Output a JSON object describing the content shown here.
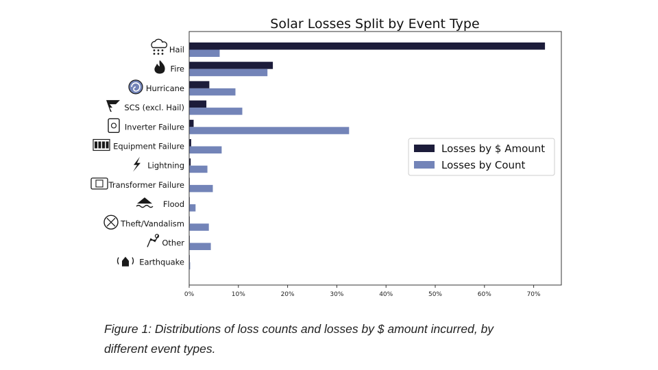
{
  "chart_data": {
    "type": "bar",
    "orientation": "horizontal",
    "title": "Solar Losses Split by Event Type",
    "categories": [
      "Hail",
      "Fire",
      "Hurricane",
      "SCS (excl. Hail)",
      "Inverter Failure",
      "Equipment Failure",
      "Lightning",
      "Transformer Failure",
      "Flood",
      "Theft/Vandalism",
      "Other",
      "Earthquake"
    ],
    "category_icons": [
      "hail-cloud-icon",
      "fire-icon",
      "hurricane-icon",
      "tornado-icon",
      "inverter-icon",
      "equipment-icon",
      "lightning-icon",
      "transformer-icon",
      "flood-icon",
      "theft-icon",
      "other-icon",
      "earthquake-icon"
    ],
    "series": [
      {
        "name": "Losses by $ Amount",
        "color": "#1c1c3a",
        "values": [
          72.3,
          17.0,
          4.1,
          3.5,
          0.9,
          0.4,
          0.3,
          0.1,
          0.1,
          0.1,
          0.1,
          0.0
        ]
      },
      {
        "name": "Losses by Count",
        "color": "#7384b8",
        "values": [
          6.2,
          15.9,
          9.4,
          10.8,
          32.5,
          6.6,
          3.7,
          4.8,
          1.3,
          4.0,
          4.4,
          0.2
        ]
      }
    ],
    "xlim": [
      0,
      76.5
    ],
    "xticks": [
      "0%",
      "10%",
      "20%",
      "30%",
      "40%",
      "50%",
      "60%",
      "70%"
    ],
    "legend_position": "center-right",
    "grid": false
  },
  "caption": {
    "line1": "Figure 1: Distributions of loss counts and losses by $ amount incurred, by",
    "line2": "different event types."
  }
}
